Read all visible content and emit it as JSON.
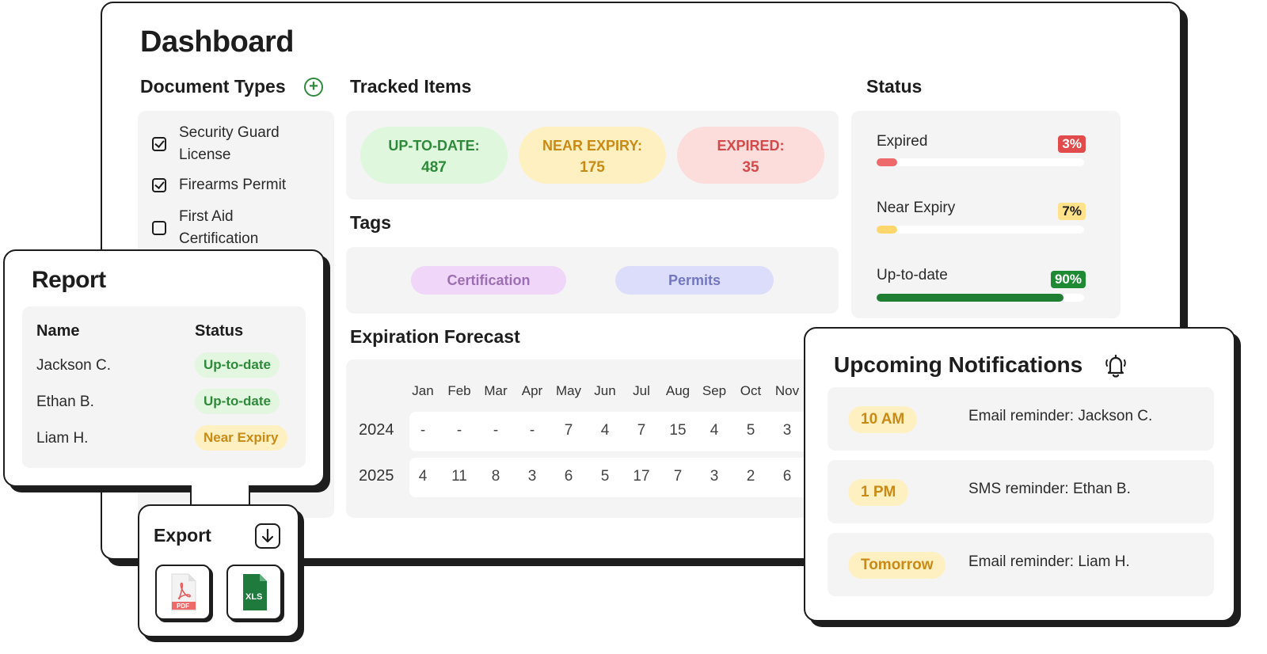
{
  "dashboard": {
    "title": "Dashboard"
  },
  "document_types": {
    "title": "Document Types",
    "items": [
      {
        "line1": "Security Guard",
        "line2": "License",
        "checked": true
      },
      {
        "line1": "Firearms Permit",
        "line2": "",
        "checked": true
      },
      {
        "line1": "First Aid",
        "line2": "Certification",
        "checked": false
      }
    ]
  },
  "tracked_items": {
    "title": "Tracked Items",
    "pills": [
      {
        "label": "UP-TO-DATE:",
        "value": "487",
        "bg": "#dff7dd",
        "fg": "#2e8a3a"
      },
      {
        "label": "NEAR EXPIRY:",
        "value": "175",
        "bg": "#fff0c2",
        "fg": "#c98a16"
      },
      {
        "label": "EXPIRED:",
        "value": "35",
        "bg": "#fddcdc",
        "fg": "#d34a4a"
      }
    ]
  },
  "tags": {
    "title": "Tags",
    "items": [
      {
        "label": "Certification",
        "bg": "#f0d6f8",
        "fg": "#9b6fb1"
      },
      {
        "label": "Permits",
        "bg": "#dcddfa",
        "fg": "#7377bf"
      }
    ]
  },
  "forecast": {
    "title": "Expiration Forecast",
    "months": [
      "Jan",
      "Feb",
      "Mar",
      "Apr",
      "May",
      "Jun",
      "Jul",
      "Aug",
      "Sep",
      "Oct",
      "Nov"
    ],
    "rows": [
      {
        "year": "2024",
        "values": [
          "-",
          "-",
          "-",
          "-",
          "7",
          "4",
          "7",
          "15",
          "4",
          "5",
          "3"
        ]
      },
      {
        "year": "2025",
        "values": [
          "4",
          "11",
          "8",
          "3",
          "6",
          "5",
          "17",
          "7",
          "3",
          "2",
          "6"
        ]
      }
    ]
  },
  "status": {
    "title": "Status",
    "items": [
      {
        "label": "Expired",
        "percent": "3%",
        "fraction": 0.03,
        "badge_bg": "#e14b4b",
        "badge_fg": "#ffffff",
        "bar": "#ee6a6a"
      },
      {
        "label": "Near Expiry",
        "percent": "7%",
        "fraction": 0.07,
        "badge_bg": "#ffe28a",
        "badge_fg": "#1d1d1d",
        "bar": "#ffd66b"
      },
      {
        "label": "Up-to-date",
        "percent": "90%",
        "fraction": 0.9,
        "badge_bg": "#1e8a34",
        "badge_fg": "#ffffff",
        "bar": "#1e7f34"
      }
    ]
  },
  "report": {
    "title": "Report",
    "col_name": "Name",
    "col_status": "Status",
    "rows": [
      {
        "name": "Jackson C.",
        "status": "Up-to-date",
        "bg": "#e3f6e0",
        "fg": "#2e8a3a"
      },
      {
        "name": "Ethan B.",
        "status": "Up-to-date",
        "bg": "#e3f6e0",
        "fg": "#2e8a3a"
      },
      {
        "name": "Liam H.",
        "status": "Near Expiry",
        "bg": "#fff0c2",
        "fg": "#c98a16"
      }
    ]
  },
  "export": {
    "title": "Export",
    "pdf_label": "PDF",
    "xls_label": "XLS",
    "download_icon": "download-arrow-icon"
  },
  "notifications": {
    "title": "Upcoming Notifications",
    "icon": "bell-icon",
    "items": [
      {
        "time": "10 AM",
        "text": "Email reminder: Jackson C."
      },
      {
        "time": "1 PM",
        "text": "SMS reminder: Ethan B."
      },
      {
        "time": "Tomorrow",
        "text": "Email reminder: Liam H."
      }
    ]
  }
}
